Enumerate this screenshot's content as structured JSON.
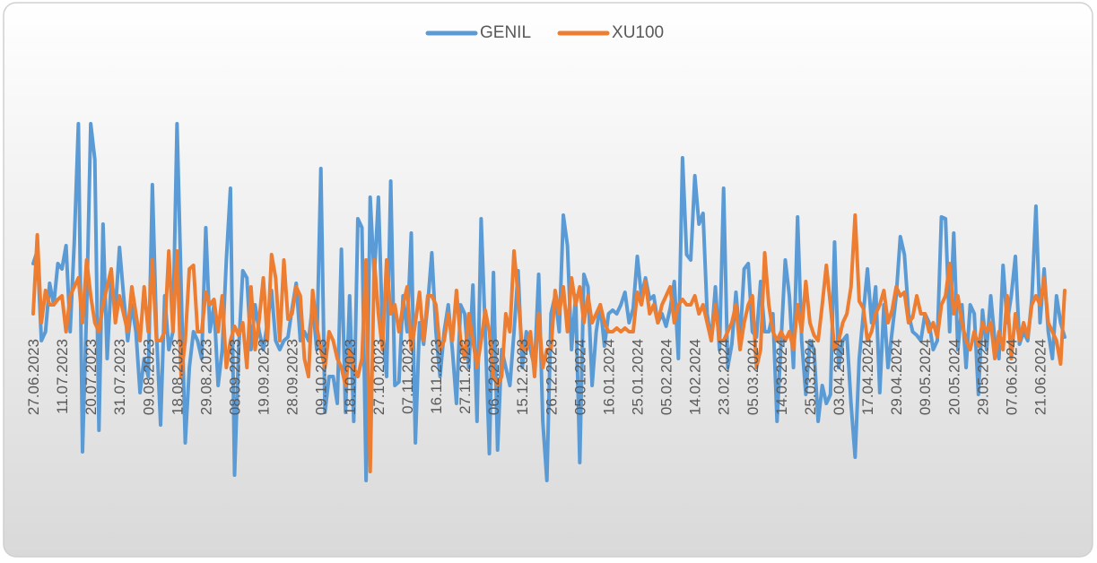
{
  "chart_data": {
    "type": "line",
    "ylim": [
      -12,
      14
    ],
    "legend": "top",
    "categories": [
      "27.06.2023",
      null,
      null,
      null,
      null,
      null,
      null,
      "11.07.2023",
      null,
      null,
      null,
      null,
      null,
      null,
      "20.07.2023",
      null,
      null,
      null,
      null,
      null,
      null,
      "31.07.2023",
      null,
      null,
      null,
      null,
      null,
      null,
      "09.08.2023",
      null,
      null,
      null,
      null,
      null,
      null,
      "18.08.2023",
      null,
      null,
      null,
      null,
      null,
      null,
      "29.08.2023",
      null,
      null,
      null,
      null,
      null,
      null,
      "08.09.2023",
      null,
      null,
      null,
      null,
      null,
      null,
      "19.09.2023",
      null,
      null,
      null,
      null,
      null,
      null,
      "28.09.2023",
      null,
      null,
      null,
      null,
      null,
      null,
      "09.10.2023",
      null,
      null,
      null,
      null,
      null,
      null,
      "18.10.2023",
      null,
      null,
      null,
      null,
      null,
      null,
      "27.10.2023",
      null,
      null,
      null,
      null,
      null,
      null,
      "07.11.2023",
      null,
      null,
      null,
      null,
      null,
      null,
      "16.11.2023",
      null,
      null,
      null,
      null,
      null,
      null,
      "27.11.2023",
      null,
      null,
      null,
      null,
      null,
      null,
      "06.12.2023",
      null,
      null,
      null,
      null,
      null,
      null,
      "15.12.2023",
      null,
      null,
      null,
      null,
      null,
      null,
      "26.12.2023",
      null,
      null,
      null,
      null,
      null,
      null,
      "05.01.2024",
      null,
      null,
      null,
      null,
      null,
      null,
      "16.01.2024",
      null,
      null,
      null,
      null,
      null,
      null,
      "25.01.2024",
      null,
      null,
      null,
      null,
      null,
      null,
      "05.02.2024",
      null,
      null,
      null,
      null,
      null,
      null,
      "14.02.2024",
      null,
      null,
      null,
      null,
      null,
      null,
      "23.02.2024",
      null,
      null,
      null,
      null,
      null,
      null,
      "05.03.2024",
      null,
      null,
      null,
      null,
      null,
      null,
      "14.03.2024",
      null,
      null,
      null,
      null,
      null,
      null,
      "25.03.2024",
      null,
      null,
      null,
      null,
      null,
      null,
      "03.04.2024",
      null,
      null,
      null,
      null,
      null,
      null,
      "17.04.2024",
      null,
      null,
      null,
      null,
      null,
      null,
      "29.04.2024",
      null,
      null,
      null,
      null,
      null,
      null,
      "09.05.2024",
      null,
      null,
      null,
      null,
      null,
      null,
      "20.05.2024",
      null,
      null,
      null,
      null,
      null,
      null,
      "29.05.2024",
      null,
      null,
      null,
      null,
      null,
      null,
      "07.06.2024",
      null,
      null,
      null,
      null,
      null,
      null,
      "21.06.2024",
      null,
      null,
      null,
      null,
      null,
      null
    ],
    "series": [
      {
        "name": "GENIL",
        "color": "#5b9bd5",
        "values": [
          2.8,
          3.5,
          -1.5,
          -1,
          1.7,
          0.5,
          2.8,
          2.5,
          3.8,
          -1,
          4,
          10.6,
          -7.7,
          0.2,
          10.6,
          8.6,
          -6.5,
          5,
          -2.5,
          2,
          0.2,
          3.7,
          1,
          -1.5,
          0.5,
          -1,
          -4.4,
          -2.5,
          -3.5,
          7.2,
          -1,
          -6.2,
          1,
          -2,
          -1,
          10.6,
          1.5,
          -7.2,
          -3,
          -1,
          -1.5,
          -2.5,
          4.8,
          -1,
          0.5,
          -4,
          -2,
          3,
          7,
          -9,
          -2,
          2.4,
          2,
          -2,
          0.5,
          -1,
          -2,
          -0.5,
          1.3,
          -1.5,
          -2,
          -1.5,
          -1.3,
          0.3,
          1.7,
          -1.5,
          -1,
          -1.5,
          0.5,
          -2,
          8.1,
          -5.5,
          -3.5,
          -3.5,
          -5,
          3.6,
          -5.5,
          1,
          -6,
          5.3,
          4.8,
          -9.3,
          6.5,
          2,
          6.5,
          -1,
          -3.5,
          7.4,
          -4,
          -3.8,
          1,
          -1,
          4.5,
          -7.2,
          -0.5,
          -1.7,
          0.5,
          3.4,
          -1,
          -3.5,
          -1,
          0.5,
          -2,
          -5,
          0.5,
          0,
          -3,
          1.6,
          -6,
          5.3,
          -1,
          -7.8,
          2.3,
          -7.6,
          -2,
          -3,
          -4,
          -1,
          2.4,
          -3,
          -1,
          -2,
          -3,
          2.2,
          -6,
          -9.3,
          0,
          1,
          -1,
          5.5,
          3.8,
          -2,
          1,
          -8.3,
          2.2,
          1.5,
          -4,
          -1,
          0.5,
          -1.8,
          0,
          0.2,
          0,
          0.5,
          1.2,
          -0.5,
          0.3,
          3.2,
          1,
          2,
          0.8,
          1,
          -0.5,
          0,
          -0.7,
          0.3,
          1.8,
          -2.5,
          8.7,
          3.3,
          3,
          7.7,
          5,
          5.6,
          0,
          -1.5,
          1.5,
          -2,
          7,
          -3,
          -1.7,
          1.2,
          -1.5,
          2.5,
          2.8,
          -1,
          -1.3,
          1.8,
          -1,
          -1,
          0,
          -6,
          -1.5,
          3,
          1,
          -3,
          5.4,
          -1.5,
          -4.5,
          -1.5,
          -2,
          -6,
          -4,
          -5,
          -4.5,
          4,
          -3,
          -1.5,
          -1.2,
          -5,
          -8,
          -2.5,
          0,
          2.5,
          -0.5,
          1.5,
          -4.4,
          0.5,
          -3,
          -1,
          1,
          4.3,
          3.3,
          0,
          -1,
          -1.2,
          -1.5,
          0,
          -0.5,
          -2,
          -1.5,
          5.4,
          5.3,
          -1,
          4.5,
          -2,
          0.5,
          -3,
          0.5,
          0,
          -4.5,
          0.2,
          -2,
          1,
          -1.5,
          -2.5,
          2.7,
          -0.5,
          1,
          3.2,
          -1.7,
          -1,
          -1.5,
          0.8,
          6,
          -0.5,
          2.5,
          -1,
          -2.5,
          1,
          -0.5,
          -1.3
        ]
      },
      {
        "name": "XU100",
        "color": "#ed7d31",
        "values": [
          0,
          4.4,
          -0.5,
          1.3,
          0.5,
          0.5,
          0.8,
          1,
          -1,
          1,
          1.5,
          2,
          -0.5,
          3,
          1,
          -0.5,
          -1,
          0.5,
          1.5,
          2.5,
          -0.5,
          1,
          0,
          -1,
          1.5,
          0,
          -1.5,
          1.5,
          -1,
          3,
          -1.5,
          -1.5,
          -1,
          3.5,
          -1,
          3.5,
          -3.5,
          -1.5,
          2.5,
          2.7,
          -1,
          -1,
          1.2,
          0.5,
          0.8,
          -1,
          1,
          -3,
          -1.5,
          -0.7,
          -1.2,
          -0.5,
          -3,
          1.5,
          -2,
          -0.3,
          2,
          -1.5,
          3.3,
          2,
          -1.5,
          3,
          -0.3,
          0,
          1.5,
          1,
          -2.5,
          -3.5,
          1.3,
          -0.7,
          -2,
          -3,
          -1,
          -1.5,
          -2.5,
          -3,
          -4,
          -2,
          -3,
          -3.5,
          -2.5,
          3,
          -8.8,
          3,
          0,
          -2,
          3,
          0,
          0.5,
          -1,
          0.5,
          1.5,
          -2,
          -0.5,
          1.2,
          -1.5,
          1,
          1,
          0.5,
          -2,
          -1.5,
          0,
          -1.5,
          1.3,
          -1.5,
          -2.5,
          0,
          -1.5,
          -3,
          -1.5,
          0.2,
          -1,
          -3.5,
          -4,
          -3.5,
          0,
          -1,
          3.5,
          1,
          -2,
          -2,
          -1,
          -3.5,
          0,
          -3,
          -2,
          -2,
          1.3,
          0,
          1.5,
          -1,
          2,
          0.5,
          1.5,
          -0.5,
          1,
          -0.5,
          0,
          0.5,
          -0.5,
          -1,
          -1,
          -0.8,
          -1,
          -0.8,
          -1,
          -1,
          1.2,
          0.5,
          1.8,
          0,
          0.5,
          -0.5,
          0.5,
          1,
          1.5,
          -0.5,
          0.5,
          0.8,
          0.5,
          0.5,
          1,
          0,
          0.5,
          -0.5,
          -1.5,
          0.5,
          -1.5,
          -1.5,
          -1,
          -0.5,
          0.5,
          -2,
          -0.5,
          0.5,
          1,
          -3,
          -2,
          3.4,
          0.5,
          -1,
          -1.5,
          -1,
          -1.5,
          -1,
          -2,
          0.5,
          -1,
          1.8,
          -0.5,
          -1.2,
          -1.5,
          0.5,
          2.7,
          0.5,
          -2,
          -1.5,
          -0.5,
          0,
          1.5,
          5.5,
          0.7,
          0.3,
          -1.5,
          -1,
          0,
          0.5,
          1.3,
          -0.5,
          0.2,
          1.5,
          1,
          1.2,
          -0.5,
          -0.2,
          1,
          0,
          0,
          -1,
          -0.5,
          -1.3,
          0.5,
          1,
          2.8,
          0,
          1,
          -0.5,
          -1.5,
          -2,
          -1,
          -1.8,
          -0.5,
          -1,
          -0.5,
          -2.5,
          -1,
          -2,
          1,
          -2.5,
          0,
          -1.5,
          -0.5,
          -1.3,
          0.5,
          1,
          0.5,
          2,
          -0.5,
          -1,
          -1.5,
          -2.8,
          1.3
        ]
      }
    ]
  }
}
